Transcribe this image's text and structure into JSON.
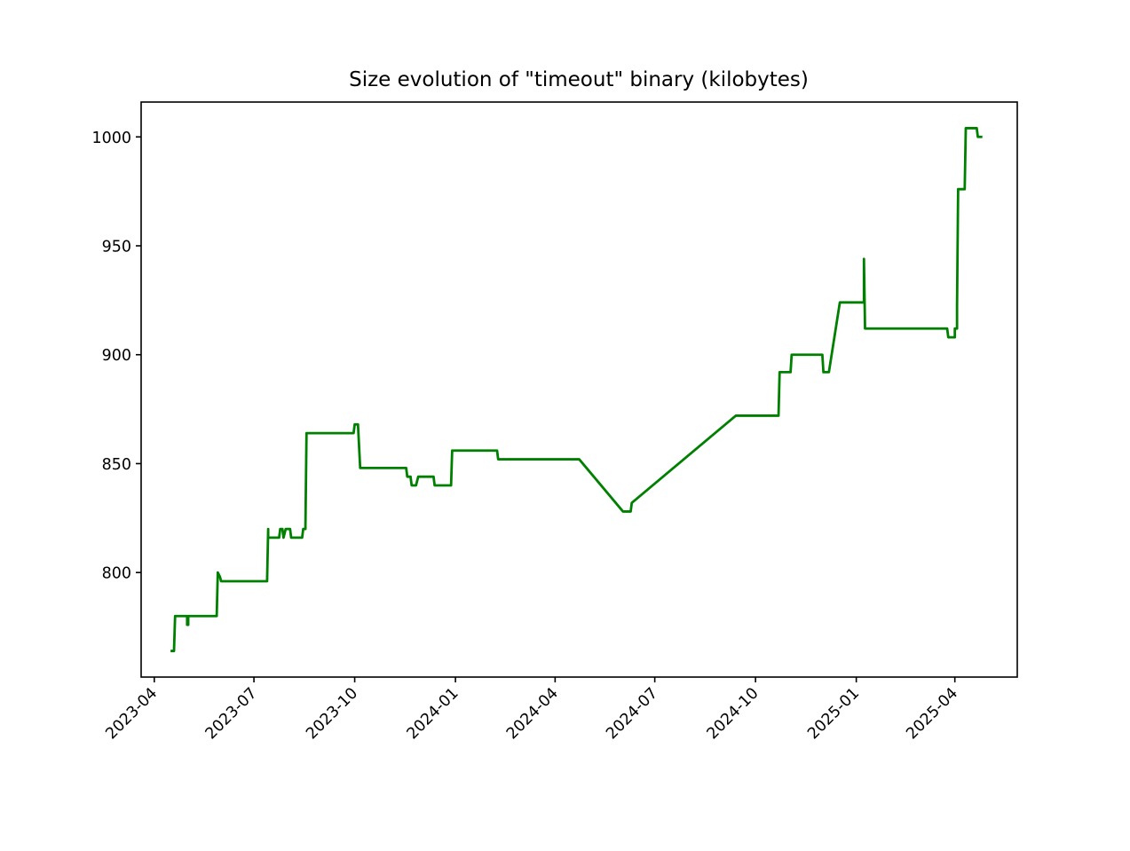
{
  "chart_data": {
    "type": "line",
    "title": "Size evolution of \"timeout\" binary (kilobytes)",
    "xlabel": "",
    "ylabel": "",
    "x_axis_type": "date",
    "xlim": [
      "2023-03-20",
      "2025-05-28"
    ],
    "ylim": [
      752,
      1016
    ],
    "grid": false,
    "legend": "none",
    "colors": {
      "line": "#008000",
      "axes": "#000000",
      "background": "#ffffff"
    },
    "x_ticks": [
      "2023-04",
      "2023-07",
      "2023-10",
      "2024-01",
      "2024-04",
      "2024-07",
      "2024-10",
      "2025-01",
      "2025-04"
    ],
    "x_tick_dates": [
      "2023-04-01",
      "2023-07-01",
      "2023-10-01",
      "2024-01-01",
      "2024-04-01",
      "2024-07-01",
      "2024-10-01",
      "2025-01-01",
      "2025-04-01"
    ],
    "y_ticks": [
      800,
      850,
      900,
      950,
      1000
    ],
    "series": [
      {
        "x": [
          "2023-04-17",
          "2023-04-19",
          "2023-04-20",
          "2023-05-01",
          "2023-05-01",
          "2023-05-02",
          "2023-05-02",
          "2023-05-28",
          "2023-05-29",
          "2023-05-31",
          "2023-06-01",
          "2023-07-13",
          "2023-07-14",
          "2023-07-14",
          "2023-07-24",
          "2023-07-25",
          "2023-07-27",
          "2023-07-28",
          "2023-07-30",
          "2023-08-03",
          "2023-08-04",
          "2023-08-14",
          "2023-08-15",
          "2023-08-17",
          "2023-08-18",
          "2023-09-30",
          "2023-10-01",
          "2023-10-04",
          "2023-10-06",
          "2023-11-17",
          "2023-11-18",
          "2023-11-21",
          "2023-11-22",
          "2023-11-26",
          "2023-11-28",
          "2023-12-12",
          "2023-12-13",
          "2023-12-28",
          "2023-12-29",
          "2024-02-08",
          "2024-02-09",
          "2024-04-23",
          "2024-06-02",
          "2024-06-09",
          "2024-06-10",
          "2024-09-13",
          "2024-10-22",
          "2024-10-23",
          "2024-11-02",
          "2024-11-03",
          "2024-12-01",
          "2024-12-02",
          "2024-12-07",
          "2024-12-17",
          "2025-01-08",
          "2025-01-08",
          "2025-01-09",
          "2025-03-25",
          "2025-03-26",
          "2025-04-01",
          "2025-04-01",
          "2025-04-03",
          "2025-04-03",
          "2025-04-04",
          "2025-04-05",
          "2025-04-10",
          "2025-04-11",
          "2025-04-21",
          "2025-04-22",
          "2025-04-25"
        ],
        "values": [
          764,
          764,
          780,
          780,
          776,
          776,
          780,
          780,
          800,
          798,
          796,
          796,
          820,
          816,
          816,
          820,
          820,
          816,
          820,
          820,
          816,
          816,
          820,
          820,
          864,
          864,
          868,
          868,
          848,
          848,
          844,
          844,
          840,
          840,
          844,
          844,
          840,
          840,
          856,
          856,
          852,
          852,
          828,
          828,
          832,
          872,
          872,
          892,
          892,
          900,
          900,
          892,
          892,
          924,
          924,
          944,
          912,
          912,
          908,
          908,
          912,
          912,
          922,
          976,
          976,
          976,
          1004,
          1004,
          1000,
          1000
        ]
      }
    ]
  }
}
